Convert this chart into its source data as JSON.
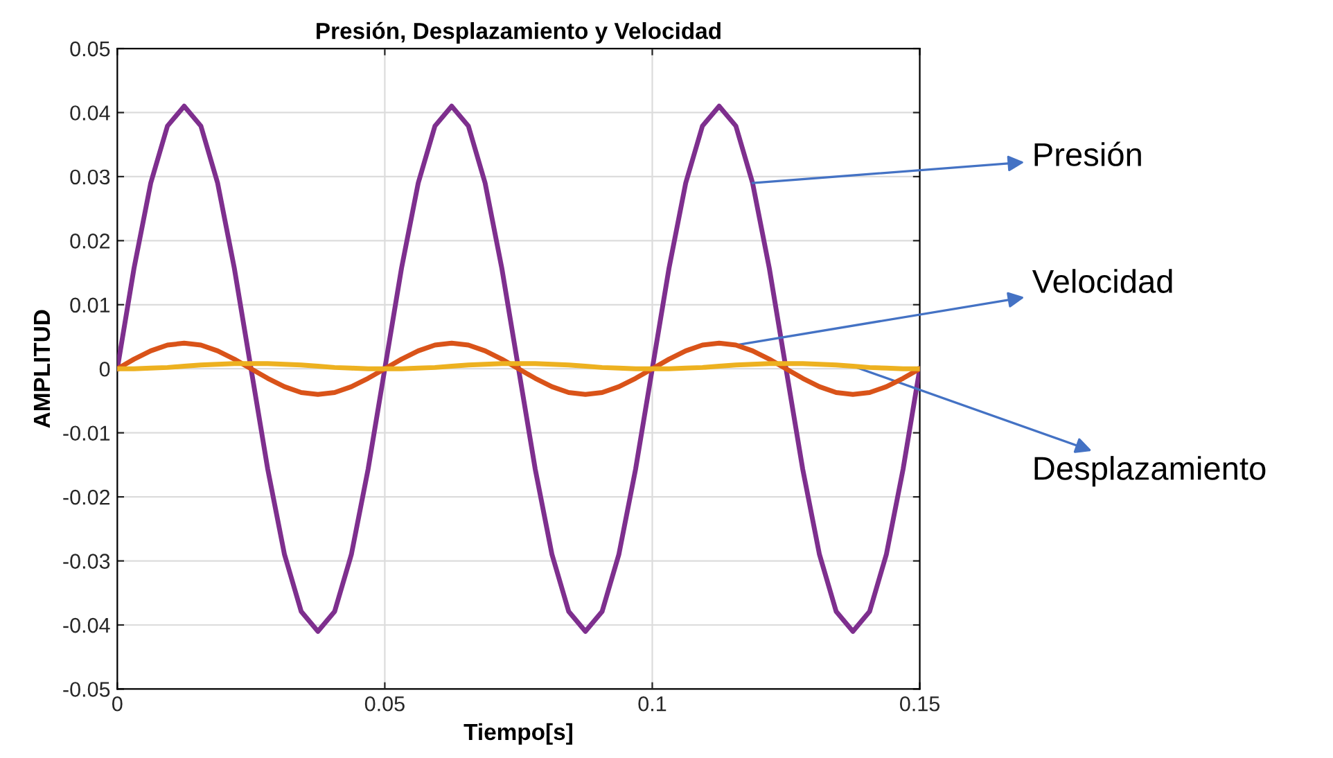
{
  "chart_data": {
    "type": "line",
    "title": "Presión, Desplazamiento y Velocidad",
    "xlabel": "Tiempo[s]",
    "ylabel": "AMPLITUD",
    "x": [
      0,
      0.003125,
      0.00625,
      0.009375,
      0.0125,
      0.015625,
      0.01875,
      0.021875,
      0.025,
      0.028125,
      0.03125,
      0.034375,
      0.0375,
      0.040625,
      0.04375,
      0.046875,
      0.05,
      0.053125,
      0.05625,
      0.059375,
      0.0625,
      0.065625,
      0.06875,
      0.071875,
      0.075,
      0.078125,
      0.08125,
      0.084375,
      0.0875,
      0.090625,
      0.09375,
      0.096875,
      0.1,
      0.103125,
      0.10625,
      0.109375,
      0.1125,
      0.115625,
      0.11875,
      0.121875,
      0.125,
      0.128125,
      0.13125,
      0.134375,
      0.1375,
      0.140625,
      0.14375,
      0.146875,
      0.15
    ],
    "series": [
      {
        "name": "Presión",
        "color": "#7e2f8e",
        "values": [
          0,
          0.0157,
          0.029,
          0.0379,
          0.041,
          0.0379,
          0.029,
          0.0157,
          0,
          -0.0157,
          -0.029,
          -0.0379,
          -0.041,
          -0.0379,
          -0.029,
          -0.0157,
          0,
          0.0157,
          0.029,
          0.0379,
          0.041,
          0.0379,
          0.029,
          0.0157,
          0,
          -0.0157,
          -0.029,
          -0.0379,
          -0.041,
          -0.0379,
          -0.029,
          -0.0157,
          0,
          0.0157,
          0.029,
          0.0379,
          0.041,
          0.0379,
          0.029,
          0.0157,
          0,
          -0.0157,
          -0.029,
          -0.0379,
          -0.041,
          -0.0379,
          -0.029,
          -0.0157,
          0
        ]
      },
      {
        "name": "Velocidad",
        "color": "#d95319",
        "values": [
          0,
          0.0015,
          0.0028,
          0.0037,
          0.004,
          0.0037,
          0.0028,
          0.0015,
          0,
          -0.0015,
          -0.0028,
          -0.0037,
          -0.004,
          -0.0037,
          -0.0028,
          -0.0015,
          0,
          0.0015,
          0.0028,
          0.0037,
          0.004,
          0.0037,
          0.0028,
          0.0015,
          0,
          -0.0015,
          -0.0028,
          -0.0037,
          -0.004,
          -0.0037,
          -0.0028,
          -0.0015,
          0,
          0.0015,
          0.0028,
          0.0037,
          0.004,
          0.0037,
          0.0028,
          0.0015,
          0,
          -0.0015,
          -0.0028,
          -0.0037,
          -0.004,
          -0.0037,
          -0.0028,
          -0.0015,
          0
        ]
      },
      {
        "name": "Desplazamiento",
        "color": "#edb120",
        "values": [
          0,
          0,
          0.0001,
          0.0002,
          0.0004,
          0.0006,
          0.0007,
          0.0008,
          0.0008,
          0.0008,
          0.0007,
          0.0006,
          0.0004,
          0.0002,
          0.0001,
          0,
          0,
          0,
          0.0001,
          0.0002,
          0.0004,
          0.0006,
          0.0007,
          0.0008,
          0.0008,
          0.0008,
          0.0007,
          0.0006,
          0.0004,
          0.0002,
          0.0001,
          0,
          0,
          0,
          0.0001,
          0.0002,
          0.0004,
          0.0006,
          0.0007,
          0.0008,
          0.0008,
          0.0008,
          0.0007,
          0.0006,
          0.0004,
          0.0002,
          0.0001,
          0,
          0
        ]
      }
    ],
    "xlim": [
      0,
      0.15
    ],
    "xticks": [
      0,
      0.05,
      0.1,
      0.15
    ],
    "ylim": [
      -0.05,
      0.05
    ],
    "yticks": [
      -0.05,
      -0.04,
      -0.03,
      -0.02,
      -0.01,
      0,
      0.01,
      0.02,
      0.03,
      0.04,
      0.05
    ],
    "grid": true,
    "legend": false,
    "marker": "none",
    "line_style": "solid"
  }
}
